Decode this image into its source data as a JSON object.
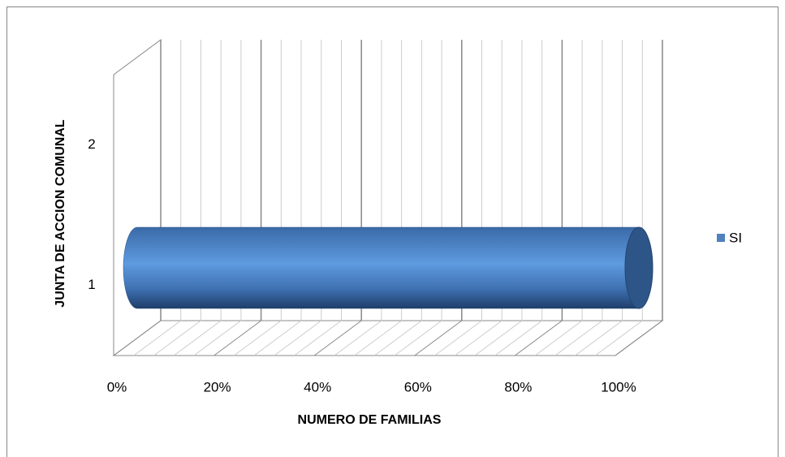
{
  "chart_data": {
    "type": "bar3d_horizontal_cylinder",
    "categories": [
      "1",
      "2"
    ],
    "series": [
      {
        "name": "SI",
        "color": "#4f81bd",
        "values": [
          100,
          null
        ]
      }
    ],
    "xlabel": "NUMERO DE FAMILIAS",
    "ylabel": "JUNTA DE ACCION COMUNAL",
    "xlim": [
      0,
      100
    ],
    "xticks": [
      {
        "value": 0,
        "label": "0%"
      },
      {
        "value": 20,
        "label": "20%"
      },
      {
        "value": 40,
        "label": "40%"
      },
      {
        "value": 60,
        "label": "60%"
      },
      {
        "value": 80,
        "label": "80%"
      },
      {
        "value": 100,
        "label": "100%"
      }
    ],
    "grid": true,
    "legend": "right"
  }
}
